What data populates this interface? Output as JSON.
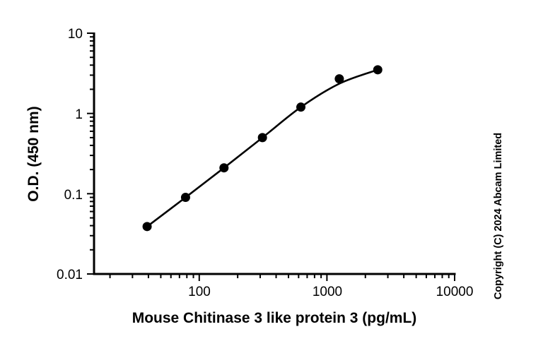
{
  "chart_data": {
    "type": "scatter",
    "xlabel": "Mouse Chitinase 3 like protein 3 (pg/mL)",
    "ylabel": "O.D. (450 nm)",
    "xscale": "log",
    "yscale": "log",
    "xlim": [
      15,
      10000
    ],
    "ylim": [
      0.01,
      10
    ],
    "x_ticks": [
      "100",
      "1000",
      "10000"
    ],
    "y_ticks": [
      "0.01",
      "0.1",
      "1",
      "10"
    ],
    "grid": false,
    "points": {
      "x": [
        39.06,
        78.13,
        156.25,
        312.5,
        625,
        1250,
        2500
      ],
      "y": [
        0.039,
        0.09,
        0.21,
        0.5,
        1.2,
        2.7,
        3.5
      ]
    },
    "fit_curve": {
      "x": [
        39.06,
        78.13,
        156.25,
        312.5,
        625,
        1250,
        2500
      ],
      "y": [
        0.039,
        0.09,
        0.21,
        0.5,
        1.2,
        2.35,
        3.5
      ]
    },
    "colors": {
      "points": "#000000",
      "curve": "#000000"
    }
  },
  "copyright": "Copyright (C) 2024 Abcam Limited"
}
